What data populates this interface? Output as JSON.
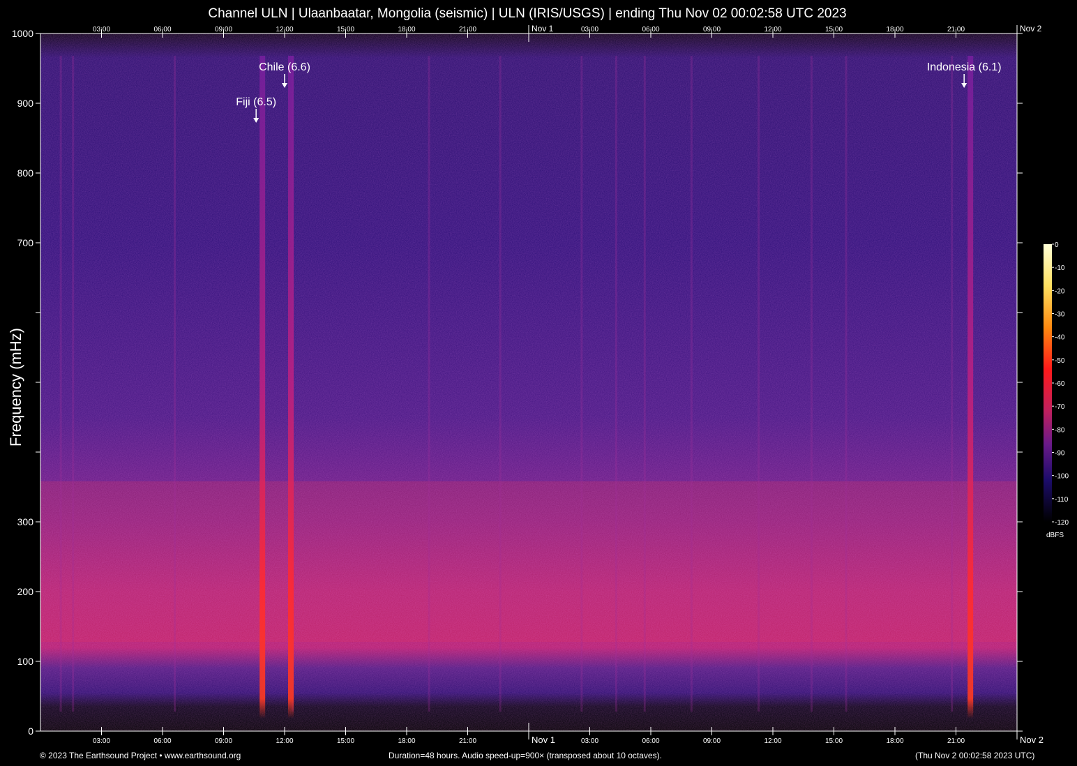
{
  "chart_data": {
    "type": "heatmap",
    "title": "Channel ULN | Ulaanbaatar, Mongolia (seismic) | ULN (IRIS/USGS) | ending Thu Nov 02 00:02:58 UTC 2023",
    "xlabel": "",
    "ylabel": "Frequency (mHz)",
    "ylim": [
      0,
      1000
    ],
    "y_ticks": [
      0,
      100,
      200,
      300,
      400,
      500,
      600,
      700,
      800,
      900,
      1000
    ],
    "y_tick_labels": [
      "0",
      "100",
      "200",
      "300",
      "",
      "",
      "",
      "700",
      "800",
      "900",
      "1000"
    ],
    "x_range_hours": [
      0,
      48
    ],
    "x_ticks": [
      {
        "hour": 3,
        "label": "03:00"
      },
      {
        "hour": 6,
        "label": "06:00"
      },
      {
        "hour": 9,
        "label": "09:00"
      },
      {
        "hour": 12,
        "label": "12:00"
      },
      {
        "hour": 15,
        "label": "15:00"
      },
      {
        "hour": 18,
        "label": "18:00"
      },
      {
        "hour": 21,
        "label": "21:00"
      },
      {
        "hour": 24,
        "label": "Nov  1"
      },
      {
        "hour": 27,
        "label": "03:00"
      },
      {
        "hour": 30,
        "label": "06:00"
      },
      {
        "hour": 33,
        "label": "09:00"
      },
      {
        "hour": 36,
        "label": "12:00"
      },
      {
        "hour": 39,
        "label": "15:00"
      },
      {
        "hour": 42,
        "label": "18:00"
      },
      {
        "hour": 45,
        "label": "21:00"
      },
      {
        "hour": 48,
        "label": "Nov  2"
      }
    ],
    "events": [
      {
        "label": "Chile (6.6)",
        "hour": 12.0,
        "freq_mHz": 940
      },
      {
        "label": "Fiji (6.5)",
        "hour": 10.6,
        "freq_mHz": 890
      },
      {
        "label": "Indonesia (6.1)",
        "hour": 45.4,
        "freq_mHz": 940
      }
    ],
    "colorbar": {
      "unit": "dBFS",
      "range": [
        -120,
        0
      ],
      "ticks": [
        "0",
        "-10",
        "-20",
        "-30",
        "-40",
        "-50",
        "-60",
        "-70",
        "-80",
        "-90",
        "-100",
        "-110",
        "-120"
      ]
    },
    "grid": false
  },
  "footer": {
    "left": "© 2023 The Earthsound Project • www.earthsound.org",
    "middle": "Duration=48 hours. Audio speed-up=900× (transposed about 10 octaves).",
    "right": "(Thu Nov  2 00:02:58 2023 UTC)"
  }
}
